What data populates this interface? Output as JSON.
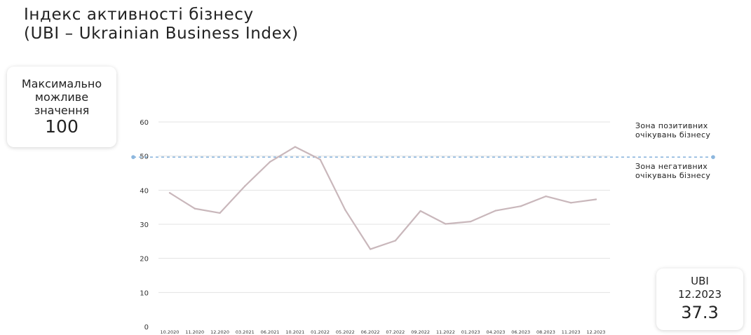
{
  "title": {
    "line1": "Індекс активності бізнесу",
    "line2": "(UBI – Ukrainian Business Index)"
  },
  "max_card": {
    "line1": "Максимально",
    "line2": "можливе",
    "line3": "значення",
    "value": "100"
  },
  "ubi_card": {
    "label": "UBI",
    "period": "12.2023",
    "value": "37.3"
  },
  "zones": {
    "positive_line1": "Зона позитивних",
    "positive_line2": "очікувань бізнесу",
    "negative_line1": "Зона негативних",
    "negative_line2": "очікувань бізнесу"
  },
  "colors": {
    "line": "#c9b7bb",
    "threshold": "#8db7de",
    "grid": "#e3e3e3"
  },
  "chart_data": {
    "type": "line",
    "title": "Індекс активності бізнесу (UBI – Ukrainian Business Index)",
    "categories": [
      "10.2020",
      "11.2020",
      "12.2020",
      "03.2021",
      "06.2021",
      "10.2021",
      "01.2022",
      "05.2022",
      "06.2022",
      "07.2022",
      "09.2022",
      "11.2022",
      "01.2023",
      "04.2023",
      "06.2023",
      "08.2023",
      "11.2023",
      "12.2023"
    ],
    "series": [
      {
        "values": [
          39.2,
          34.6,
          33.3,
          41.2,
          48.3,
          52.7,
          49.0,
          34.2,
          22.7,
          25.2,
          33.9,
          30.1,
          30.8,
          34.0,
          35.3,
          38.2,
          36.3,
          37.3
        ]
      }
    ],
    "threshold": 50,
    "yticks": [
      0,
      10,
      20,
      30,
      40,
      50,
      60
    ],
    "ylim": [
      0,
      60
    ],
    "grid": true,
    "legend": "none"
  }
}
